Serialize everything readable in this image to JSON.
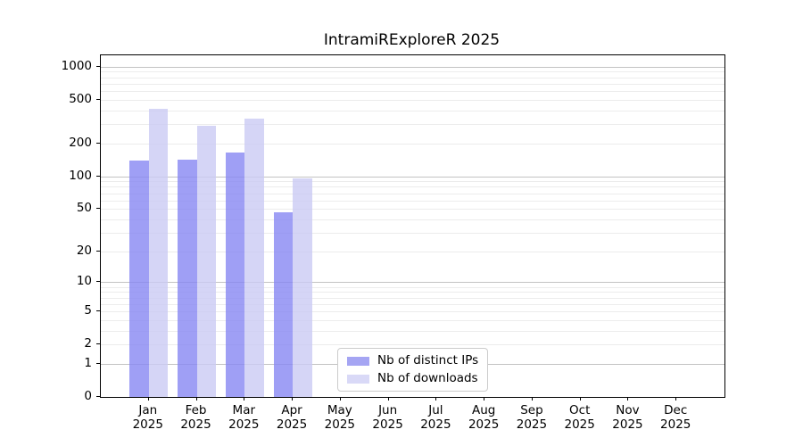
{
  "title": "IntramiRExploreR 2025",
  "colors": {
    "bar_distinct_ips": "#a5a5f3",
    "bar_downloads": "#d9d9f7",
    "grid_major": "#c3c3c3",
    "grid_minor": "#ececec",
    "axis": "#000000",
    "legend_border": "#cccccc",
    "background": "#ffffff"
  },
  "legend": {
    "items": [
      {
        "label": "Nb of distinct IPs",
        "color": "#a5a5f3"
      },
      {
        "label": "Nb of downloads",
        "color": "#d9d9f7"
      }
    ]
  },
  "chart_data": {
    "type": "bar",
    "title": "IntramiRExploreR 2025",
    "categories": [
      "Jan 2025",
      "Feb 2025",
      "Mar 2025",
      "Apr 2025",
      "May 2025",
      "Jun 2025",
      "Jul 2025",
      "Aug 2025",
      "Sep 2025",
      "Oct 2025",
      "Nov 2025",
      "Dec 2025"
    ],
    "series": [
      {
        "name": "Nb of distinct IPs",
        "values": [
          139,
          142,
          165,
          47,
          null,
          null,
          null,
          null,
          null,
          null,
          null,
          null
        ]
      },
      {
        "name": "Nb of downloads",
        "values": [
          410,
          291,
          339,
          96,
          null,
          null,
          null,
          null,
          null,
          null,
          null,
          null
        ]
      }
    ],
    "xlabel": "",
    "ylabel": "",
    "yscale": "log1p",
    "yticks": [
      0,
      1,
      2,
      5,
      10,
      20,
      50,
      100,
      200,
      500,
      1000
    ],
    "ylim": [
      0,
      1250
    ],
    "grid": "horizontal",
    "grid_major_at": [
      1,
      10,
      100,
      1000
    ],
    "legend_position": "inside-bottom-center"
  }
}
